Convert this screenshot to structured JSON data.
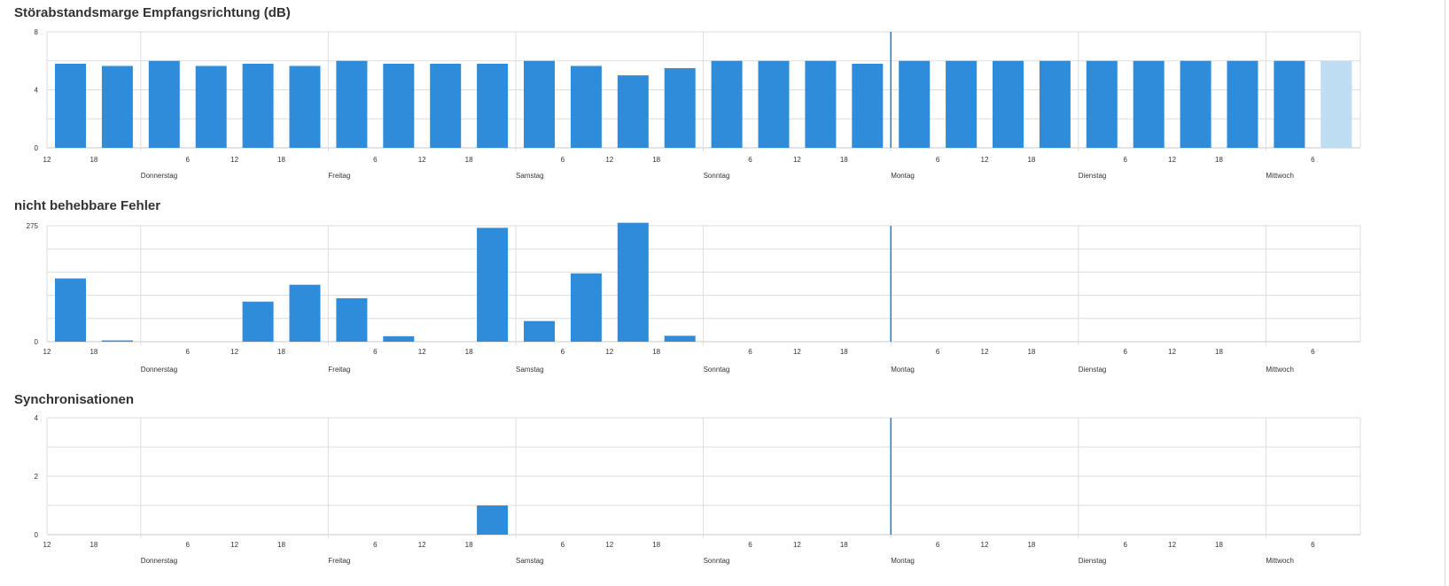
{
  "colors": {
    "bar": "#2e8cdb",
    "bar_light": "#bfddf2",
    "grid": "#dddddd",
    "axis": "#c8c8c8",
    "marker": "#2e7bbf"
  },
  "time_axis": {
    "slots": [
      "12",
      "18",
      "",
      "6",
      "12",
      "18",
      "",
      "6",
      "12",
      "18",
      "",
      "6",
      "12",
      "18",
      "",
      "6",
      "12",
      "18",
      "",
      "6",
      "12",
      "18",
      "",
      "6",
      "12",
      "18",
      "",
      "6"
    ],
    "days": [
      "Donnerstag",
      "Freitag",
      "Samstag",
      "Sonntag",
      "Montag",
      "Dienstag",
      "Mittwoch"
    ]
  },
  "chart_data": [
    {
      "type": "bar",
      "title": "Störabstandsmarge Empfangsrichtung (dB)",
      "ylim": [
        0,
        8
      ],
      "yticks": [
        "8",
        "4",
        "0"
      ],
      "values": [
        5.8,
        5.65,
        6.0,
        5.65,
        5.8,
        5.65,
        6.0,
        5.8,
        5.8,
        5.8,
        6.0,
        5.65,
        5.0,
        5.5,
        6.0,
        6.0,
        6.0,
        5.8,
        6.0,
        6.0,
        6.0,
        6.0,
        6.0,
        6.0,
        6.0,
        6.0,
        6.0,
        6.0
      ],
      "highlight_last": true,
      "grid": true
    },
    {
      "type": "bar",
      "title": "nicht behebbare Fehler",
      "ylim": [
        0,
        275
      ],
      "yticks": [
        "275",
        "0"
      ],
      "values": [
        150,
        3,
        0,
        0,
        95,
        135,
        103,
        13,
        0,
        270,
        49,
        162,
        282,
        14,
        0,
        0,
        0,
        0,
        0,
        0,
        0,
        0,
        0,
        0,
        0,
        0,
        0,
        0
      ],
      "highlight_last": false,
      "grid": true
    },
    {
      "type": "bar",
      "title": "Synchronisationen",
      "ylim": [
        0,
        4
      ],
      "yticks": [
        "4",
        "2",
        "0"
      ],
      "values": [
        0,
        0,
        0,
        0,
        0,
        0,
        0,
        0,
        0,
        1,
        0,
        0,
        0,
        0,
        0,
        0,
        0,
        0,
        0,
        0,
        0,
        0,
        0,
        0,
        0,
        0,
        0,
        0
      ],
      "highlight_last": false,
      "grid": true
    }
  ]
}
